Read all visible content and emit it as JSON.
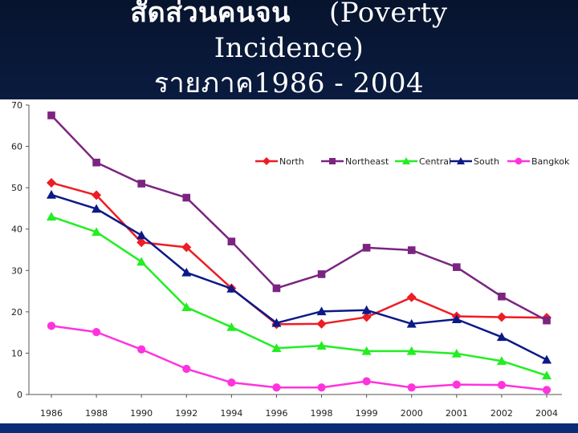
{
  "slide": {
    "title_thai": "สัดส่วนคนจน",
    "title_en_1": "(Poverty",
    "title_en_2": "Incidence)",
    "title_range": "รายภาค1986 - 2004"
  },
  "chart_data": {
    "type": "line",
    "title": "",
    "xlabel": "",
    "ylabel": "",
    "categories": [
      "1986",
      "1988",
      "1990",
      "1992",
      "1994",
      "1996",
      "1998",
      "1999",
      "2000",
      "2001",
      "2002",
      "2004"
    ],
    "ylim": [
      0,
      70
    ],
    "yticks": [
      "0",
      "10",
      "20",
      "30",
      "40",
      "50",
      "60",
      "70"
    ],
    "grid": false,
    "legend_position": "top-right",
    "series": [
      {
        "name": "North",
        "color": "#ee1c24",
        "marker": "diamond",
        "values": [
          51.2,
          48.2,
          36.8,
          35.6,
          25.7,
          17.0,
          17.1,
          18.7,
          23.5,
          18.9,
          18.7,
          18.6
        ]
      },
      {
        "name": "Northeast",
        "color": "#7b2481",
        "marker": "square",
        "values": [
          67.5,
          56.1,
          51.0,
          47.6,
          37.0,
          25.7,
          29.1,
          35.5,
          34.9,
          30.8,
          23.7,
          17.9
        ]
      },
      {
        "name": "Central",
        "color": "#22ee22",
        "marker": "triangle",
        "values": [
          43.0,
          39.3,
          32.1,
          21.1,
          16.3,
          11.2,
          11.8,
          10.5,
          10.5,
          9.9,
          8.1,
          4.6
        ]
      },
      {
        "name": "South",
        "color": "#0b1a86",
        "marker": "triangle",
        "values": [
          48.3,
          44.9,
          38.5,
          29.5,
          25.6,
          17.3,
          20.1,
          20.4,
          17.1,
          18.2,
          13.9,
          8.4
        ]
      },
      {
        "name": "Bangkok",
        "color": "#ff33dd",
        "marker": "circle",
        "values": [
          16.6,
          15.1,
          10.9,
          6.2,
          2.9,
          1.7,
          1.7,
          3.2,
          1.7,
          2.4,
          2.3,
          1.1
        ]
      }
    ]
  }
}
